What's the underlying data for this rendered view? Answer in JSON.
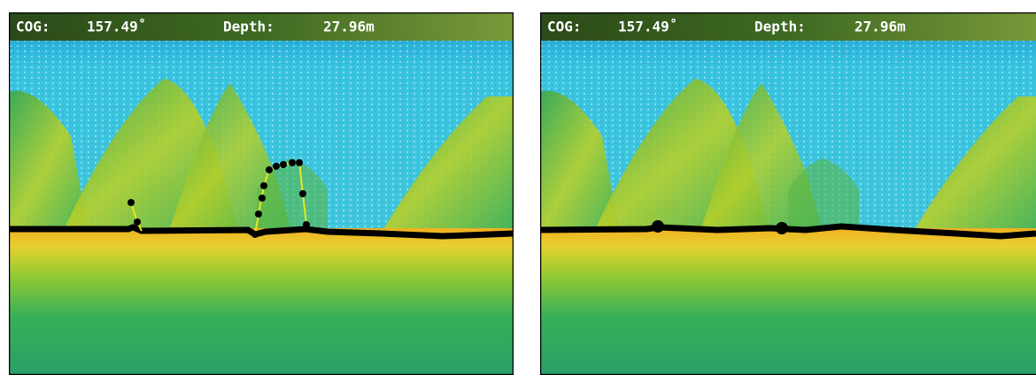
{
  "panels": [
    {
      "cog_label": "COG:",
      "cog_value": "157.49˚",
      "depth_label": "Depth:",
      "depth_value": "27.96m"
    },
    {
      "cog_label": "COG:",
      "cog_value": "157.49˚",
      "depth_label": "Depth:",
      "depth_value": "27.96m"
    }
  ]
}
